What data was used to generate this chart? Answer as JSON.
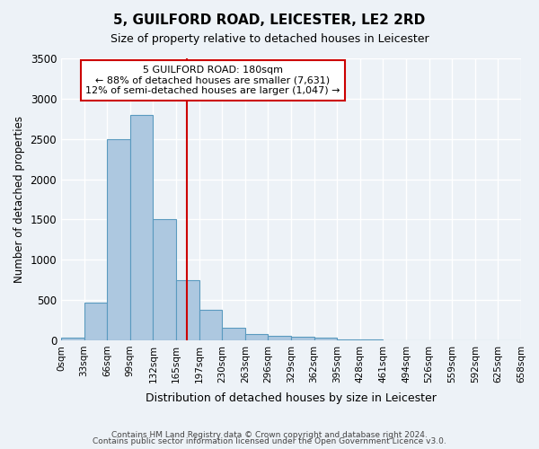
{
  "title": "5, GUILFORD ROAD, LEICESTER, LE2 2RD",
  "subtitle": "Size of property relative to detached houses in Leicester",
  "xlabel": "Distribution of detached houses by size in Leicester",
  "ylabel": "Number of detached properties",
  "footer1": "Contains HM Land Registry data © Crown copyright and database right 2024.",
  "footer2": "Contains public sector information licensed under the Open Government Licence v3.0.",
  "bin_labels": [
    "0sqm",
    "33sqm",
    "66sqm",
    "99sqm",
    "132sqm",
    "165sqm",
    "197sqm",
    "230sqm",
    "263sqm",
    "296sqm",
    "329sqm",
    "362sqm",
    "395sqm",
    "428sqm",
    "461sqm",
    "494sqm",
    "526sqm",
    "559sqm",
    "592sqm",
    "625sqm",
    "658sqm"
  ],
  "bar_heights": [
    30,
    470,
    2500,
    2800,
    1500,
    750,
    380,
    150,
    75,
    55,
    40,
    30,
    15,
    5,
    2,
    1,
    0,
    0,
    0,
    0
  ],
  "bar_color": "#adc8e0",
  "bar_edge_color": "#5a9abf",
  "red_line_x": 5.454545,
  "annotation_title": "5 GUILFORD ROAD: 180sqm",
  "annotation_line1": "← 88% of detached houses are smaller (7,631)",
  "annotation_line2": "12% of semi-detached houses are larger (1,047) →",
  "red_color": "#cc0000",
  "ylim": [
    0,
    3500
  ],
  "yticks": [
    0,
    500,
    1000,
    1500,
    2000,
    2500,
    3000,
    3500
  ],
  "background_color": "#edf2f7",
  "grid_color": "#ffffff"
}
